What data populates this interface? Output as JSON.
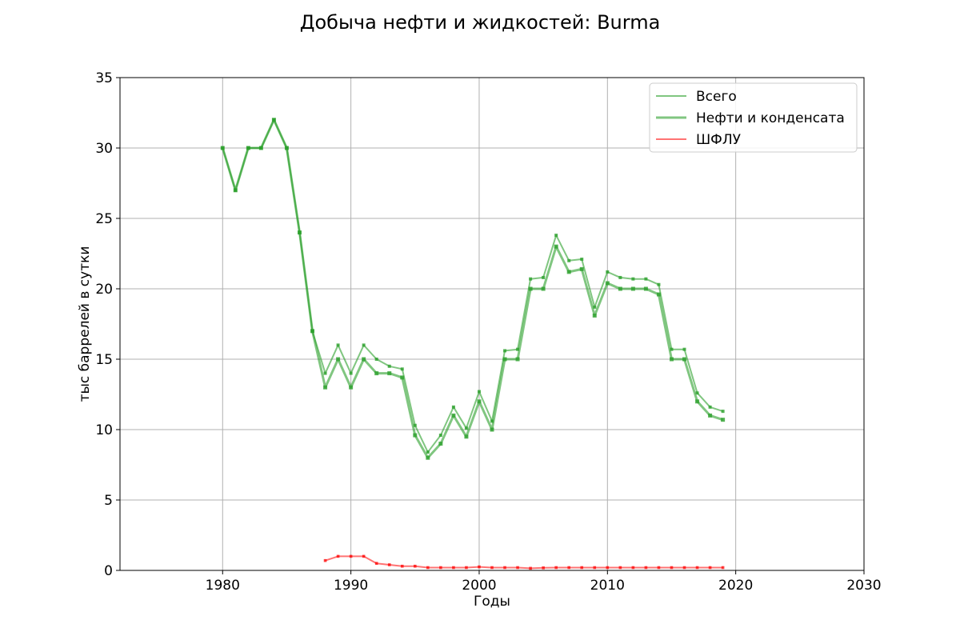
{
  "chart_data": {
    "type": "line",
    "title": "Добыча нефти и жидкостей: Burma",
    "xlabel": "Годы",
    "ylabel": "тыс баррелей в сутки",
    "xlim": [
      1972,
      2030
    ],
    "ylim": [
      0,
      35
    ],
    "xticks": [
      1980,
      1990,
      2000,
      2010,
      2020,
      2030
    ],
    "yticks": [
      0,
      5,
      10,
      15,
      20,
      25,
      30,
      35
    ],
    "grid": true,
    "legend_position": "top-right",
    "series": [
      {
        "name": "Всего",
        "color": "#2ca02c",
        "x": [
          1980,
          1981,
          1982,
          1983,
          1984,
          1985,
          1986,
          1987,
          1988,
          1989,
          1990,
          1991,
          1992,
          1993,
          1994,
          1995,
          1996,
          1997,
          1998,
          1999,
          2000,
          2001,
          2002,
          2003,
          2004,
          2005,
          2006,
          2007,
          2008,
          2009,
          2010,
          2011,
          2012,
          2013,
          2014,
          2015,
          2016,
          2017,
          2018,
          2019
        ],
        "values": [
          30,
          27,
          30,
          30,
          32,
          30,
          24,
          17,
          14,
          16,
          14,
          16,
          15,
          14.5,
          14.3,
          10.3,
          8.4,
          9.6,
          11.6,
          10.1,
          12.7,
          10.6,
          15.6,
          15.7,
          20.7,
          20.8,
          23.8,
          22,
          22.1,
          18.7,
          21.2,
          20.8,
          20.7,
          20.7,
          20.3,
          15.7,
          15.7,
          12.6,
          11.6,
          11.3
        ]
      },
      {
        "name": "Нефти и конденсата",
        "color": "#2ca02c",
        "x": [
          1980,
          1981,
          1982,
          1983,
          1984,
          1985,
          1986,
          1987,
          1988,
          1989,
          1990,
          1991,
          1992,
          1993,
          1994,
          1995,
          1996,
          1997,
          1998,
          1999,
          2000,
          2001,
          2002,
          2003,
          2004,
          2005,
          2006,
          2007,
          2008,
          2009,
          2010,
          2011,
          2012,
          2013,
          2014,
          2015,
          2016,
          2017,
          2018,
          2019
        ],
        "values": [
          30,
          27,
          30,
          30,
          32,
          30,
          24,
          17,
          13,
          15,
          13,
          15,
          14,
          14,
          13.7,
          9.6,
          8,
          9,
          11,
          9.5,
          12,
          10,
          15,
          15,
          20,
          20,
          23,
          21.2,
          21.4,
          18.1,
          20.4,
          20,
          20,
          20,
          19.6,
          15,
          15,
          12,
          11,
          10.7
        ]
      },
      {
        "name": "ШФЛУ",
        "color": "#ff0000",
        "x": [
          1988,
          1989,
          1990,
          1991,
          1992,
          1993,
          1994,
          1995,
          1996,
          1997,
          1998,
          1999,
          2000,
          2001,
          2002,
          2003,
          2004,
          2005,
          2006,
          2007,
          2008,
          2009,
          2010,
          2011,
          2012,
          2013,
          2014,
          2015,
          2016,
          2017,
          2018,
          2019
        ],
        "values": [
          0.7,
          1,
          1,
          1,
          0.5,
          0.4,
          0.3,
          0.3,
          0.2,
          0.2,
          0.2,
          0.2,
          0.25,
          0.2,
          0.2,
          0.2,
          0.15,
          0.18,
          0.2,
          0.2,
          0.2,
          0.2,
          0.2,
          0.2,
          0.2,
          0.2,
          0.2,
          0.2,
          0.2,
          0.2,
          0.2,
          0.2
        ]
      }
    ]
  }
}
